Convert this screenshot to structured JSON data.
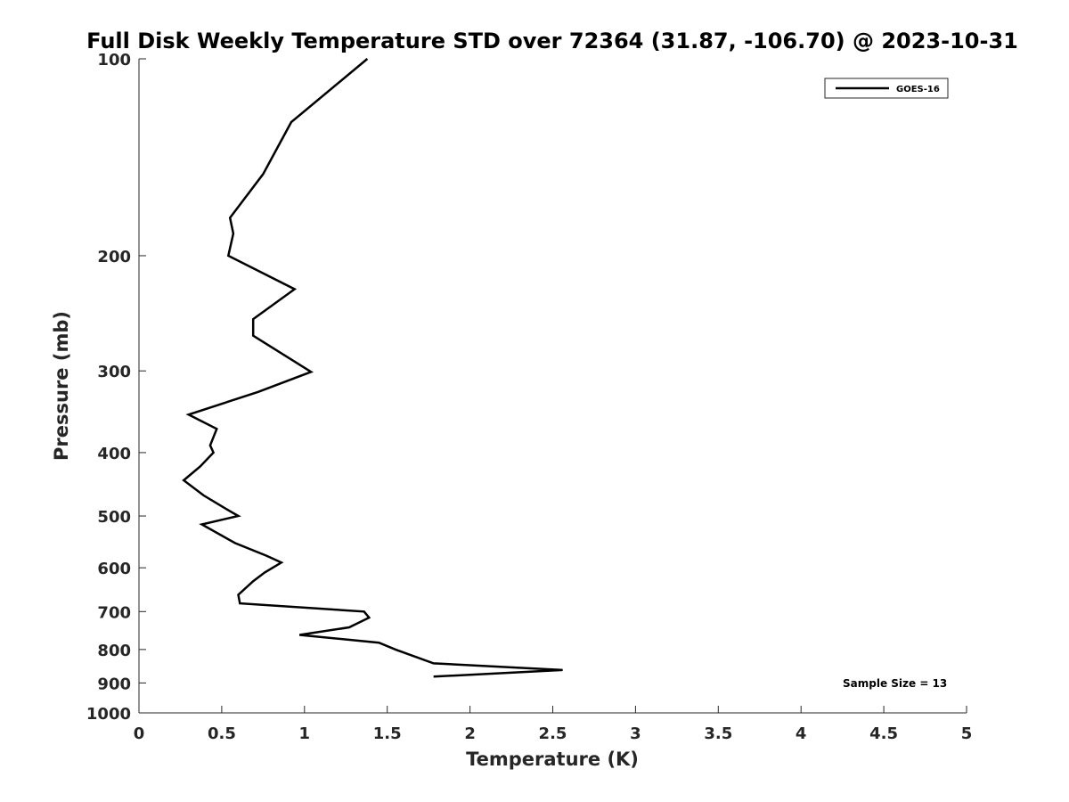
{
  "chart_data": {
    "type": "line",
    "title": "Full Disk Weekly Temperature STD over 72364 (31.87, -106.70) @ 2023-10-31",
    "xlabel": "Temperature (K)",
    "ylabel": "Pressure (mb)",
    "xlim": [
      0,
      5
    ],
    "ylim": [
      100,
      1000
    ],
    "yscale": "log",
    "yreversed": true,
    "xticks": [
      0,
      0.5,
      1,
      1.5,
      2,
      2.5,
      3,
      3.5,
      4,
      4.5,
      5
    ],
    "xtick_labels": [
      "0",
      "0.5",
      "1",
      "1.5",
      "2",
      "2.5",
      "3",
      "3.5",
      "4",
      "4.5",
      "5"
    ],
    "yticks": [
      100,
      200,
      300,
      400,
      500,
      600,
      700,
      800,
      900,
      1000
    ],
    "ytick_labels": [
      "100",
      "200",
      "300",
      "400",
      "500",
      "600",
      "700",
      "800",
      "900",
      "1000"
    ],
    "grid": false,
    "legend_position": "top-right",
    "annotation": "Sample Size = 13",
    "series": [
      {
        "name": "GOES-16",
        "color": "#000000",
        "points": [
          [
            1.38,
            100
          ],
          [
            0.92,
            125
          ],
          [
            0.75,
            150
          ],
          [
            0.55,
            175
          ],
          [
            0.57,
            185
          ],
          [
            0.54,
            200
          ],
          [
            0.94,
            225
          ],
          [
            0.69,
            250
          ],
          [
            0.69,
            265
          ],
          [
            1.04,
            301
          ],
          [
            0.72,
            323
          ],
          [
            0.3,
            350
          ],
          [
            0.47,
            368
          ],
          [
            0.43,
            390
          ],
          [
            0.45,
            400
          ],
          [
            0.37,
            420
          ],
          [
            0.27,
            441
          ],
          [
            0.39,
            465
          ],
          [
            0.54,
            490
          ],
          [
            0.6,
            500
          ],
          [
            0.38,
            515
          ],
          [
            0.58,
            550
          ],
          [
            0.77,
            575
          ],
          [
            0.86,
            589
          ],
          [
            0.76,
            610
          ],
          [
            0.69,
            629
          ],
          [
            0.6,
            660
          ],
          [
            0.61,
            680
          ],
          [
            1.36,
            700
          ],
          [
            1.39,
            715
          ],
          [
            1.27,
            740
          ],
          [
            0.97,
            760
          ],
          [
            1.45,
            781
          ],
          [
            1.55,
            800
          ],
          [
            1.78,
            840
          ],
          [
            2.56,
            860
          ],
          [
            1.78,
            880
          ]
        ]
      }
    ]
  }
}
